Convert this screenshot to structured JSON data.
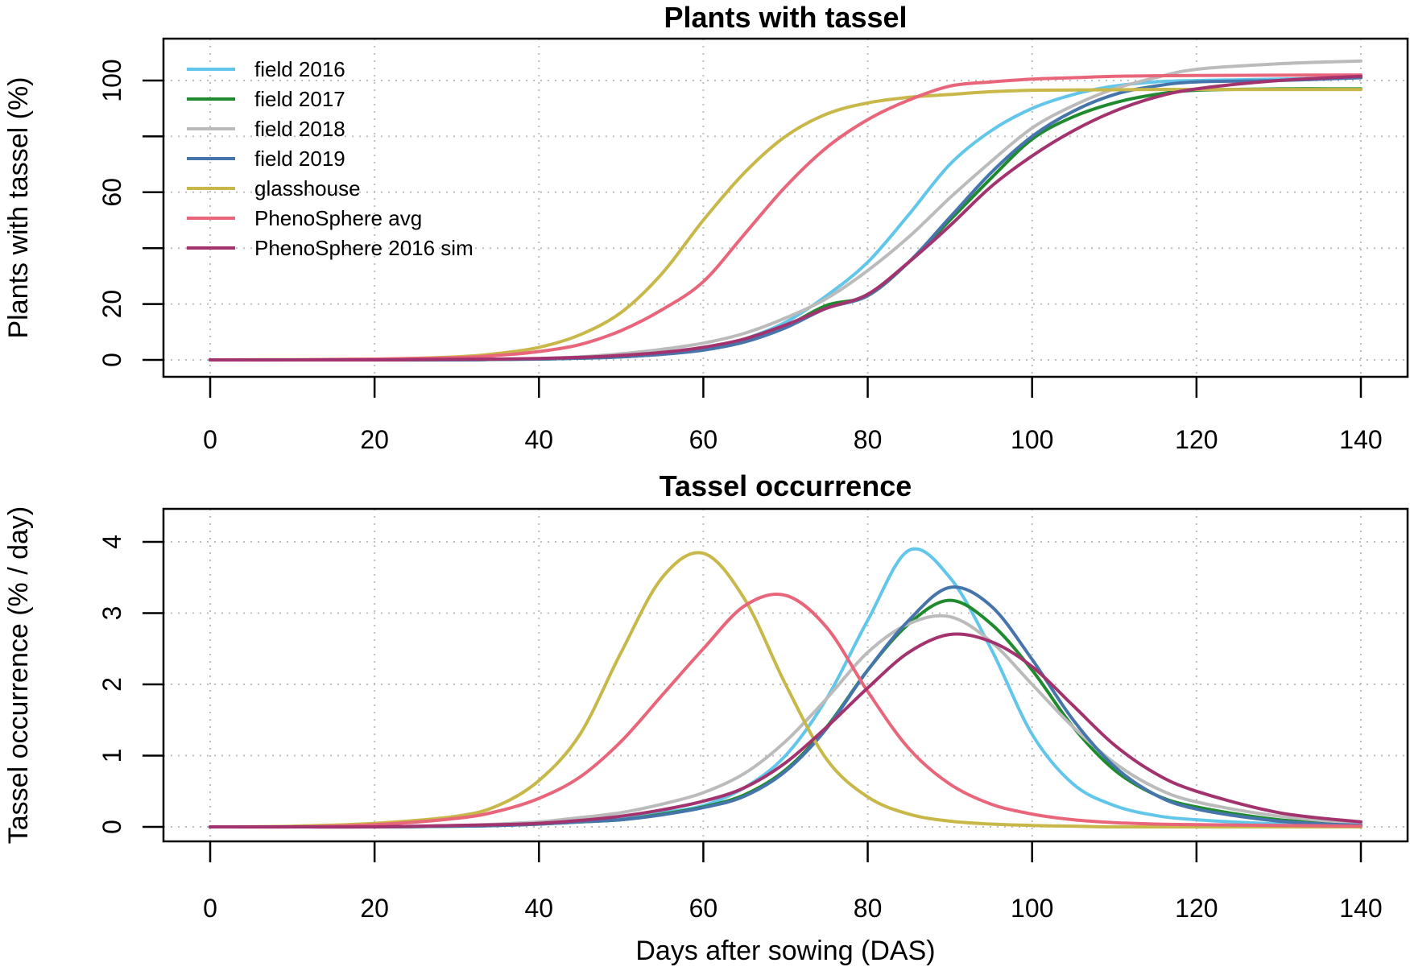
{
  "chart_data": [
    {
      "type": "line",
      "title": "Plants with tassel",
      "xlabel": "",
      "ylabel": "Plants with tassel (%)",
      "xlim": [
        0,
        140
      ],
      "ylim": [
        0,
        100
      ],
      "x_ticks": [
        0,
        20,
        40,
        60,
        80,
        100,
        120,
        140
      ],
      "y_ticks": [
        0,
        20,
        40,
        60,
        80,
        100
      ],
      "y_tick_labels": [
        "0",
        "20",
        "",
        "60",
        "",
        "100"
      ],
      "grid": true,
      "legend": "top-left",
      "x": [
        0,
        10,
        20,
        30,
        35,
        40,
        45,
        50,
        55,
        60,
        65,
        70,
        75,
        80,
        85,
        90,
        95,
        100,
        105,
        110,
        115,
        120,
        130,
        140
      ],
      "series": [
        {
          "name": "field 2016",
          "color": "#62C6EA",
          "values": [
            0,
            0,
            0,
            0,
            0.2,
            0.3,
            0.6,
            1.2,
            2.2,
            4.0,
            7.5,
            13.5,
            23,
            35,
            52,
            70,
            82,
            90,
            95,
            98,
            99.5,
            100,
            100.5,
            101
          ]
        },
        {
          "name": "field 2017",
          "color": "#1F8A2E",
          "values": [
            0,
            0,
            0,
            0,
            0.2,
            0.3,
            0.6,
            1.1,
            2.1,
            3.8,
            6.8,
            12,
            19.5,
            23,
            35,
            50,
            65,
            79,
            87,
            92,
            95,
            96.5,
            97,
            97
          ]
        },
        {
          "name": "field 2018",
          "color": "#BBBBBB",
          "values": [
            0,
            0,
            0,
            0,
            0.3,
            0.5,
            1.1,
            2.2,
            3.8,
            6.0,
            9.5,
            15,
            22,
            32,
            44,
            58,
            71,
            83,
            91,
            97,
            101,
            104,
            106,
            107
          ]
        },
        {
          "name": "field 2019",
          "color": "#4675AC",
          "values": [
            0,
            0,
            0,
            0,
            0.2,
            0.3,
            0.6,
            1.1,
            2.0,
            3.5,
            6.4,
            11.5,
            18.5,
            23,
            35,
            51,
            67,
            80,
            89,
            95,
            98,
            99.5,
            100,
            101
          ]
        },
        {
          "name": "glasshouse",
          "color": "#C8B84A",
          "values": [
            0,
            0.1,
            0.3,
            1.1,
            2.3,
            4.5,
            9,
            17,
            31,
            50,
            67,
            80,
            88,
            92,
            94,
            95,
            96,
            96.5,
            96.6,
            96.7,
            96.8,
            96.8,
            96.8,
            96.8
          ]
        },
        {
          "name": "PhenoSphere avg",
          "color": "#E8657A",
          "values": [
            0,
            0,
            0.3,
            0.8,
            1.6,
            3.0,
            5.5,
            10.5,
            18,
            28,
            45,
            62,
            76,
            86,
            93,
            98,
            99.5,
            100.5,
            101,
            101.5,
            101.7,
            101.8,
            101.9,
            102
          ]
        },
        {
          "name": "PhenoSphere 2016 sim",
          "color": "#A3336E",
          "values": [
            0,
            0,
            0,
            0.2,
            0.3,
            0.5,
            0.9,
            1.6,
            2.7,
            4.5,
            7.5,
            12.5,
            18.5,
            23.5,
            35,
            48,
            62,
            73,
            82,
            89,
            94,
            97,
            100,
            101.5
          ]
        }
      ]
    },
    {
      "type": "line",
      "title": "Tassel occurrence",
      "xlabel": "Days after sowing (DAS)",
      "ylabel": "Tassel occurrence (% / day)",
      "xlim": [
        0,
        140
      ],
      "ylim": [
        0,
        4
      ],
      "x_ticks": [
        0,
        20,
        40,
        60,
        80,
        100,
        120,
        140
      ],
      "y_ticks": [
        0,
        1,
        2,
        3,
        4
      ],
      "y_tick_labels": [
        "0",
        "1",
        "2",
        "3",
        "4"
      ],
      "grid": true,
      "legend": "none",
      "x": [
        0,
        10,
        20,
        30,
        35,
        40,
        45,
        50,
        55,
        60,
        65,
        70,
        75,
        80,
        85,
        90,
        95,
        100,
        105,
        110,
        115,
        120,
        130,
        140
      ],
      "series": [
        {
          "name": "field 2016",
          "color": "#62C6EA",
          "values": [
            0,
            0,
            0,
            0.01,
            0.02,
            0.04,
            0.07,
            0.12,
            0.2,
            0.3,
            0.55,
            1.0,
            1.8,
            2.9,
            3.88,
            3.5,
            2.5,
            1.3,
            0.6,
            0.3,
            0.16,
            0.1,
            0.04,
            0.01
          ]
        },
        {
          "name": "field 2017",
          "color": "#1F8A2E",
          "values": [
            0,
            0,
            0,
            0.01,
            0.02,
            0.04,
            0.07,
            0.1,
            0.18,
            0.28,
            0.45,
            0.8,
            1.4,
            2.2,
            2.85,
            3.18,
            2.85,
            2.2,
            1.4,
            0.8,
            0.45,
            0.28,
            0.1,
            0.03
          ]
        },
        {
          "name": "field 2018",
          "color": "#BBBBBB",
          "values": [
            0,
            0,
            0,
            0.02,
            0.04,
            0.07,
            0.13,
            0.2,
            0.32,
            0.48,
            0.75,
            1.2,
            1.8,
            2.45,
            2.85,
            2.95,
            2.6,
            2.0,
            1.4,
            0.9,
            0.55,
            0.35,
            0.15,
            0.05
          ]
        },
        {
          "name": "field 2019",
          "color": "#4675AC",
          "values": [
            0,
            0,
            0,
            0.01,
            0.02,
            0.04,
            0.07,
            0.1,
            0.17,
            0.27,
            0.43,
            0.78,
            1.38,
            2.2,
            2.9,
            3.36,
            3.1,
            2.35,
            1.5,
            0.85,
            0.45,
            0.25,
            0.08,
            0.02
          ]
        },
        {
          "name": "glasshouse",
          "color": "#C8B84A",
          "values": [
            0,
            0.01,
            0.05,
            0.15,
            0.3,
            0.65,
            1.3,
            2.45,
            3.5,
            3.84,
            3.2,
            2.0,
            0.95,
            0.42,
            0.18,
            0.08,
            0.04,
            0.02,
            0.01,
            0,
            0,
            0,
            0,
            0
          ]
        },
        {
          "name": "PhenoSphere avg",
          "color": "#E8657A",
          "values": [
            0,
            0,
            0.03,
            0.12,
            0.22,
            0.4,
            0.7,
            1.2,
            1.85,
            2.5,
            3.1,
            3.25,
            2.8,
            1.9,
            1.1,
            0.6,
            0.32,
            0.18,
            0.1,
            0.06,
            0.04,
            0.03,
            0.02,
            0.01
          ]
        },
        {
          "name": "PhenoSphere 2016 sim",
          "color": "#A3336E",
          "values": [
            0,
            0,
            0,
            0.02,
            0.03,
            0.05,
            0.09,
            0.15,
            0.24,
            0.36,
            0.55,
            0.9,
            1.4,
            1.95,
            2.45,
            2.7,
            2.6,
            2.25,
            1.7,
            1.15,
            0.75,
            0.5,
            0.2,
            0.07
          ]
        }
      ]
    }
  ]
}
